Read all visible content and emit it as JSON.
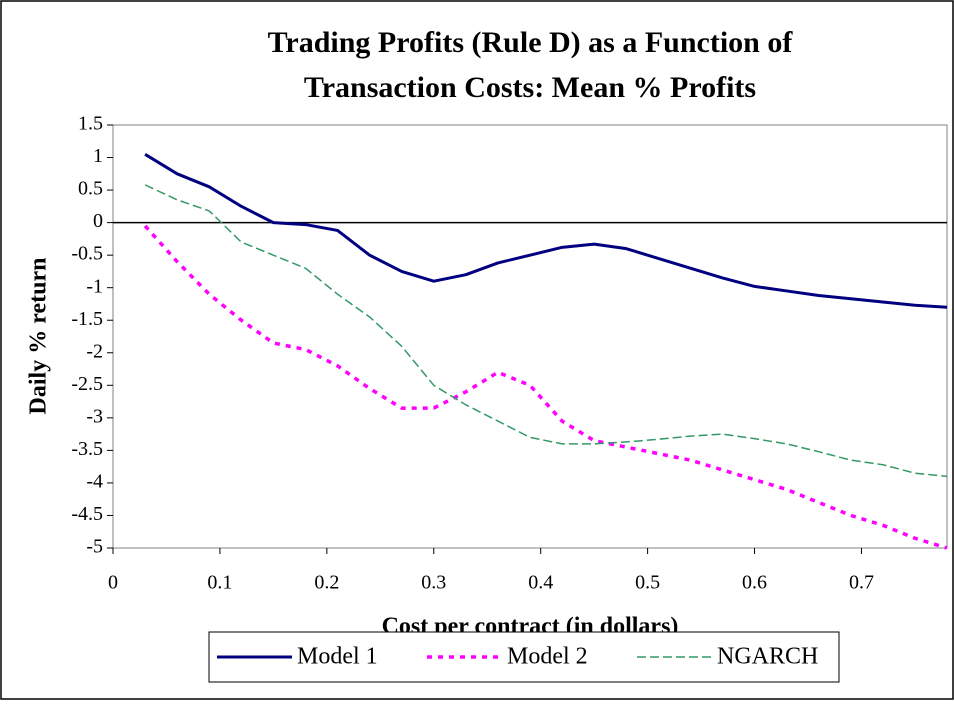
{
  "chart_data": {
    "type": "line",
    "title": "Trading Profits (Rule D) as a Function of Transaction Costs: Mean % Profits",
    "x_label": "Cost per contract (in dollars)",
    "y_label": "Daily % return",
    "x": [
      0.03,
      0.06,
      0.09,
      0.12,
      0.15,
      0.18,
      0.21,
      0.24,
      0.27,
      0.3,
      0.33,
      0.36,
      0.39,
      0.42,
      0.45,
      0.48,
      0.51,
      0.54,
      0.57,
      0.6,
      0.63,
      0.66,
      0.69,
      0.72,
      0.75,
      0.78
    ],
    "series": [
      {
        "name": "Model 1",
        "color": "#000080",
        "dash": "none",
        "width": 3,
        "values": [
          1.05,
          0.75,
          0.55,
          0.25,
          0.0,
          -0.03,
          -0.12,
          -0.5,
          -0.75,
          -0.9,
          -0.8,
          -0.62,
          -0.5,
          -0.38,
          -0.33,
          -0.4,
          -0.55,
          -0.7,
          -0.85,
          -0.98,
          -1.05,
          -1.12,
          -1.17,
          -1.22,
          -1.27,
          -1.3
        ]
      },
      {
        "name": "Model 2",
        "color": "#ff00ff",
        "dash": "5 6",
        "width": 3.5,
        "values": [
          -0.05,
          -0.6,
          -1.1,
          -1.5,
          -1.85,
          -1.95,
          -2.2,
          -2.55,
          -2.85,
          -2.85,
          -2.6,
          -2.3,
          -2.5,
          -3.05,
          -3.35,
          -3.45,
          -3.55,
          -3.65,
          -3.8,
          -3.95,
          -4.1,
          -4.3,
          -4.5,
          -4.65,
          -4.85,
          -5.0
        ]
      },
      {
        "name": "NGARCH",
        "color": "#339966",
        "dash": "9 4",
        "width": 1.5,
        "values": [
          0.58,
          0.35,
          0.18,
          -0.3,
          -0.5,
          -0.7,
          -1.1,
          -1.45,
          -1.9,
          -2.5,
          -2.8,
          -3.05,
          -3.3,
          -3.4,
          -3.4,
          -3.37,
          -3.33,
          -3.28,
          -3.25,
          -3.32,
          -3.4,
          -3.52,
          -3.65,
          -3.72,
          -3.85,
          -3.9
        ]
      }
    ],
    "xlim": [
      0,
      0.78
    ],
    "xticks": [
      0,
      0.1,
      0.2,
      0.3,
      0.4,
      0.5,
      0.6,
      0.7
    ],
    "ylim": [
      -5,
      1.5
    ],
    "yticks": [
      -5,
      -4.5,
      -4,
      -3.5,
      -3,
      -2.5,
      -2,
      -1.5,
      -1,
      -0.5,
      0,
      0.5,
      1,
      1.5
    ],
    "zero_line": true,
    "legend": "bottom"
  }
}
